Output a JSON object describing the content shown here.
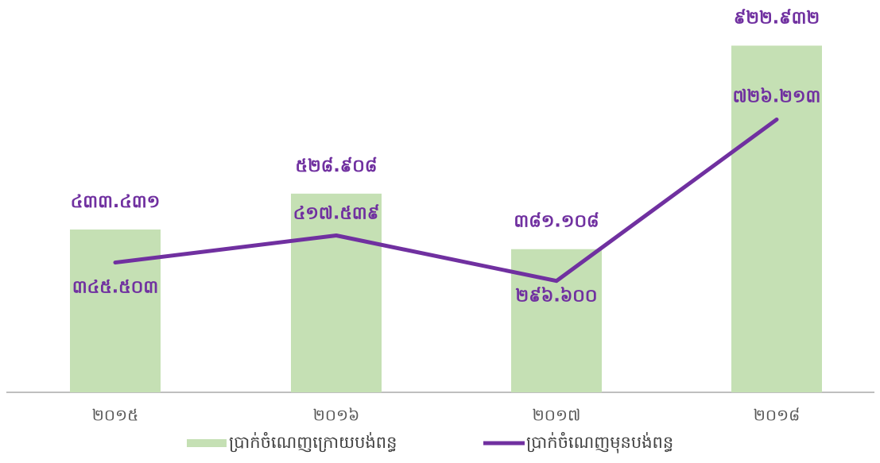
{
  "chart_data": {
    "type": "bar",
    "categories": [
      "២០១៥",
      "២០១៦",
      "២០១៧",
      "២០១៨"
    ],
    "ylim": [
      0,
      1000
    ],
    "series": [
      {
        "name": "ប្រាក់ចំណេញក្រោយបង់ពន្ធ",
        "color": "#c5e0b4",
        "type": "bar",
        "values": [
          433.431,
          528.908,
          381.108,
          922.932
        ],
        "value_labels": [
          "៤៣៣.៤៣១",
          "៥២៨.៩០៨",
          "៣៨១.១០៨",
          "៩២២.៩៣២"
        ]
      },
      {
        "name": "ប្រាក់ចំណេញមុនបង់ពន្ធ",
        "color": "#7030a0",
        "type": "line",
        "values": [
          345.503,
          417.539,
          296.6,
          726.213
        ],
        "value_labels": [
          "៣៤៥.៥០៣",
          "៤១៧.៥៣៩",
          "២៩៦.៦០០",
          "៧២៦.២១៣"
        ]
      }
    ]
  }
}
